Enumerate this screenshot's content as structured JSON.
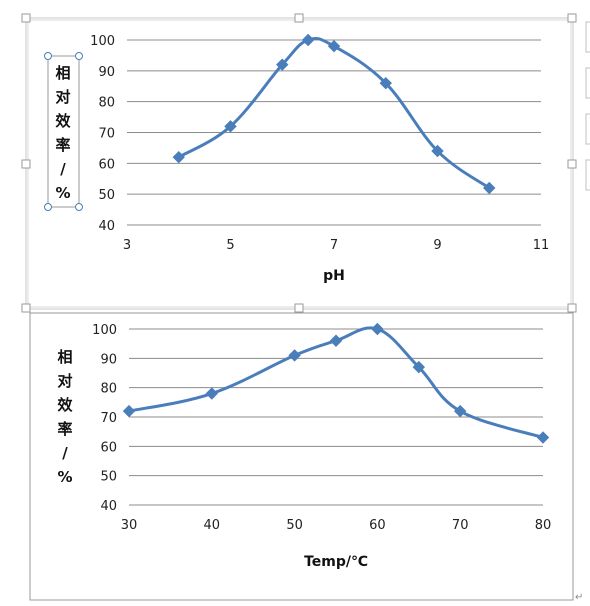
{
  "chart_data": [
    {
      "type": "line",
      "title": "",
      "xlabel": "pH",
      "ylabel": "相对效率/%",
      "ylabel_chars": [
        "相",
        "对",
        "效",
        "率",
        "/",
        "%"
      ],
      "xlim": [
        3,
        11
      ],
      "ylim": [
        40,
        100
      ],
      "xticks": [
        "3",
        "5",
        "7",
        "9",
        "11"
      ],
      "xtick_values": [
        3,
        5,
        7,
        9,
        11
      ],
      "yticks": [
        "40",
        "50",
        "60",
        "70",
        "80",
        "90",
        "100"
      ],
      "ytick_values": [
        40,
        50,
        60,
        70,
        80,
        90,
        100
      ],
      "grid": true,
      "legend": "none",
      "color": "#4a7ebb",
      "series": [
        {
          "x": [
            4,
            5,
            6,
            6.5,
            7,
            8,
            9,
            10
          ],
          "y": [
            62,
            72,
            92,
            100,
            98,
            86,
            64,
            52
          ]
        }
      ]
    },
    {
      "type": "line",
      "title": "",
      "xlabel": "Temp/℃",
      "ylabel": "相对效率/%",
      "ylabel_chars": [
        "相",
        "对",
        "效",
        "率",
        "/",
        "%"
      ],
      "xlim": [
        30,
        80
      ],
      "ylim": [
        40,
        100
      ],
      "xticks": [
        "30",
        "40",
        "50",
        "60",
        "70",
        "80"
      ],
      "xtick_values": [
        30,
        40,
        50,
        60,
        70,
        80
      ],
      "yticks": [
        "40",
        "50",
        "60",
        "70",
        "80",
        "90",
        "100"
      ],
      "ytick_values": [
        40,
        50,
        60,
        70,
        80,
        90,
        100
      ],
      "grid": true,
      "legend": "none",
      "color": "#4a7ebb",
      "series": [
        {
          "x": [
            30,
            40,
            50,
            55,
            60,
            65,
            70,
            80
          ],
          "y": [
            72,
            78,
            91,
            96,
            100,
            87,
            72,
            63
          ]
        }
      ]
    }
  ]
}
